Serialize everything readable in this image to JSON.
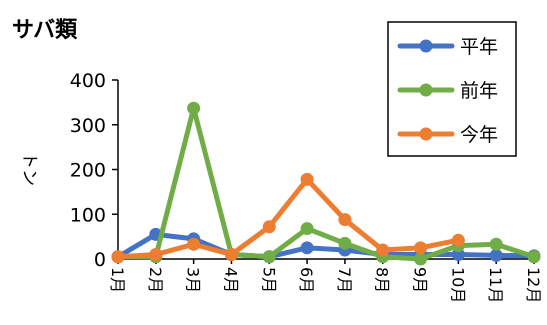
{
  "chart_data": {
    "type": "line",
    "title": "サバ類",
    "ylabel": "トン",
    "xlabel": "",
    "ylim": [
      0,
      400
    ],
    "yticks": [
      0,
      100,
      200,
      300,
      400
    ],
    "grid": false,
    "legend_position": "top-right",
    "categories": [
      "1月",
      "2月",
      "3月",
      "4月",
      "5月",
      "6月",
      "7月",
      "8月",
      "9月",
      "10月",
      "11月",
      "12月"
    ],
    "series": [
      {
        "name": "平年",
        "color": "#4472C4",
        "values": [
          5,
          55,
          45,
          10,
          5,
          25,
          20,
          10,
          10,
          10,
          8,
          7
        ]
      },
      {
        "name": "前年",
        "color": "#70AD47",
        "values": [
          5,
          5,
          337,
          10,
          5,
          68,
          35,
          5,
          0,
          30,
          33,
          5
        ]
      },
      {
        "name": "今年",
        "color": "#ED7D31",
        "values": [
          5,
          10,
          33,
          10,
          72,
          178,
          88,
          20,
          25,
          42,
          null,
          null
        ]
      }
    ]
  }
}
